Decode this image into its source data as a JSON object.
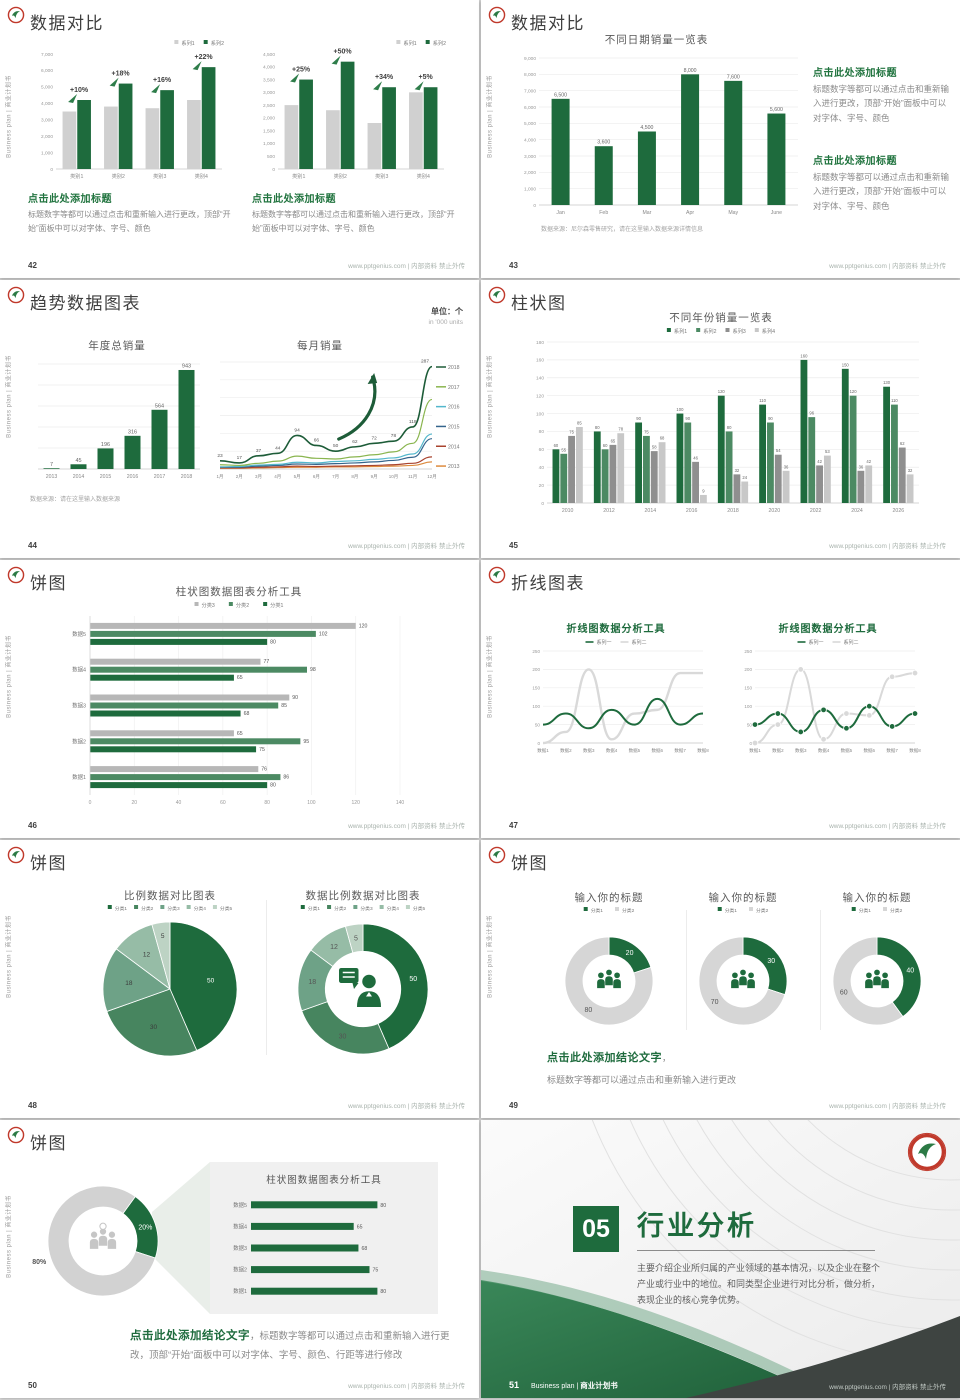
{
  "footer": {
    "url": "www.pptgenius.com | 内部资料 禁止外传"
  },
  "sidebar": {
    "text": "Business plan | 商业计划书"
  },
  "colors": {
    "accent_green": "#1e6b3d",
    "medium_green": "#4c8a63",
    "gray_bar": "#d0d0d0",
    "dark_gray": "#3e4441",
    "logo_red": "#c0392b"
  },
  "slides": {
    "s42": {
      "number": "42",
      "title": "数据对比",
      "blocks": [
        {
          "heading": "点击此处添加标题",
          "body": "标题数字等都可以通过点击和重新输入进行更改，顶部“开始”面板中可以对字体、字号、颜色"
        },
        {
          "heading": "点击此处添加标题",
          "body": "标题数字等都可以通过点击和重新输入进行更改，顶部“开始”面板中可以对字体、字号、颜色"
        }
      ]
    },
    "s43": {
      "number": "43",
      "title": "数据对比",
      "blocks": [
        {
          "heading": "点击此处添加标题",
          "body": "标题数字等都可以通过点击和重新输入进行更改，顶部“开始”面板中可以对字体、字号、颜色"
        },
        {
          "heading": "点击此处添加标题",
          "body": "标题数字等都可以通过点击和重新输入进行更改，顶部“开始”面板中可以对字体、字号、颜色"
        }
      ]
    },
    "s44": {
      "number": "44",
      "title": "趋势数据图表",
      "unit1": "单位：个",
      "unit2": "in '000 units",
      "source": "数据来源：请在这里输入数据来源"
    },
    "s45": {
      "number": "45",
      "title": "柱状图"
    },
    "s46": {
      "number": "46",
      "title": "饼图"
    },
    "s47": {
      "number": "47",
      "title": "折线图表"
    },
    "s48": {
      "number": "48",
      "title": "饼图"
    },
    "s49": {
      "number": "49",
      "title": "饼图",
      "conclusion": {
        "heading": "点击此处添加结论文字",
        "sep": "，",
        "body": "标题数字等都可以通过点击和重新输入进行更改"
      }
    },
    "s50": {
      "number": "50",
      "title": "饼图",
      "conclusion": {
        "heading": "点击此处添加结论文字",
        "body": "，标题数字等都可以通过点击和重新输入进行更改，顶部“开始”面板中可以对字体、字号、颜色、行距等进行修改"
      }
    },
    "s51": {
      "number": "51",
      "section_no": "05",
      "title": "行业分析",
      "brand": "Business plan",
      "sep": "|",
      "brand2": "商业计划书",
      "body": "主要介绍企业所归属的产业领域的基本情况，以及企业在整个产业或行业中的地位。和同类型企业进行对比分析，做分析，表现企业的核心竞争优势。"
    }
  },
  "chart_data": [
    {
      "id": "c42a",
      "type": "grouped_bar",
      "categories": [
        "类别1",
        "类别2",
        "类别3",
        "类别4"
      ],
      "series": [
        {
          "name": "系列1",
          "color": "#d0d0d0",
          "values": [
            3500,
            3800,
            3700,
            4200
          ]
        },
        {
          "name": "系列2",
          "color": "#1e6b3d",
          "values": [
            4200,
            5200,
            4800,
            6200
          ]
        }
      ],
      "ylim": [
        0,
        7000
      ],
      "ystep": 1000,
      "comma": true,
      "showLegend": true,
      "legendPos": "right",
      "annotations": [
        "+10%",
        "+18%",
        "+16%",
        "+22%"
      ]
    },
    {
      "id": "c42b",
      "type": "grouped_bar",
      "categories": [
        "类别1",
        "类别2",
        "类别3",
        "类别4"
      ],
      "series": [
        {
          "name": "系列1",
          "color": "#d0d0d0",
          "values": [
            2500,
            2300,
            1800,
            3000
          ]
        },
        {
          "name": "系列2",
          "color": "#1e6b3d",
          "values": [
            3500,
            4200,
            3200,
            3200
          ]
        }
      ],
      "ylim": [
        0,
        4500
      ],
      "ystep": 500,
      "comma": true,
      "showLegend": true,
      "legendPos": "right",
      "annotations": [
        "+25%",
        "+50%",
        "+34%",
        "+5%"
      ]
    },
    {
      "id": "c43",
      "type": "bar",
      "title": "不同日期销量一览表",
      "categories": [
        "Jan",
        "Feb",
        "Mar",
        "Apr",
        "May",
        "June"
      ],
      "values": [
        6500,
        3600,
        4500,
        8000,
        7600,
        5600
      ],
      "color": "#1e6b3d",
      "ylim": [
        0,
        9000
      ],
      "ystep": 1000,
      "comma": true,
      "labels": true,
      "grid": true,
      "bw": 18,
      "lfs": 5.2,
      "source": "数据来源：尼尔森零售研究，请在这里输入数据来源详情信息"
    },
    {
      "id": "c44a",
      "type": "bar",
      "title": "年度总销量",
      "categories": [
        "2013",
        "2014",
        "2015",
        "2016",
        "2017",
        "2018"
      ],
      "values": [
        7,
        45,
        196,
        316,
        564,
        943
      ],
      "color": "#1e6b3d",
      "ylim": [
        0,
        1000
      ],
      "ystep": 200,
      "labels": true,
      "grid": true,
      "noY": true,
      "pt": 10,
      "lfs": 5.5
    },
    {
      "id": "c44b",
      "type": "line",
      "title": "每月销量",
      "x": [
        "1月",
        "2月",
        "3月",
        "4月",
        "5月",
        "6月",
        "7月",
        "8月",
        "9月",
        "10月",
        "11月",
        "12月"
      ],
      "ylim": [
        0,
        300
      ],
      "ystep": 50,
      "grid": true,
      "noY": true,
      "legendPos": "right",
      "arrow": true,
      "series": [
        {
          "name": "2018",
          "color": "#1d5c38",
          "values": [
            23,
            17,
            37,
            44,
            94,
            66,
            50,
            62,
            72,
            78,
            118,
            287
          ],
          "labels": true,
          "width": 1.6
        },
        {
          "name": "2017",
          "color": "#8ab54f",
          "values": [
            12,
            10,
            16,
            22,
            36,
            30,
            28,
            34,
            40,
            48,
            72,
            195
          ]
        },
        {
          "name": "2016",
          "color": "#53b7cc",
          "values": [
            6,
            7,
            11,
            13,
            19,
            17,
            21,
            23,
            27,
            31,
            42,
            98
          ]
        },
        {
          "name": "2015",
          "color": "#34648c",
          "values": [
            5,
            5,
            8,
            10,
            14,
            13,
            15,
            17,
            20,
            24,
            33,
            85
          ]
        },
        {
          "name": "2014",
          "color": "#a8432e",
          "values": [
            3,
            3,
            5,
            6,
            8,
            7,
            8,
            9,
            10,
            12,
            16,
            34
          ]
        },
        {
          "name": "2013",
          "color": "#dd8b3f",
          "values": [
            2,
            2,
            3,
            4,
            5,
            5,
            6,
            6,
            7,
            8,
            10,
            20
          ]
        }
      ]
    },
    {
      "id": "c45",
      "type": "grouped_bar",
      "title": "不同年份销量一览表",
      "categories": [
        "2010",
        "2012",
        "2014",
        "2016",
        "2018",
        "2020",
        "2022",
        "2024",
        "2026"
      ],
      "series": [
        {
          "name": "系列1",
          "color": "#1e6b3d",
          "values": [
            60,
            80,
            90,
            100,
            120,
            110,
            160,
            150,
            130
          ]
        },
        {
          "name": "系列2",
          "color": "#4c8a63",
          "values": [
            55,
            60,
            75,
            90,
            80,
            90,
            96,
            120,
            110
          ]
        },
        {
          "name": "系列3",
          "color": "#8f8f8f",
          "values": [
            75,
            65,
            58,
            46,
            32,
            54,
            42,
            36,
            62
          ]
        },
        {
          "name": "系列4",
          "color": "#c8c8c8",
          "values": [
            85,
            78,
            68,
            9,
            24,
            36,
            53,
            42,
            32
          ]
        }
      ],
      "ylim": [
        0,
        180
      ],
      "ystep": 20,
      "labels": true,
      "grid": true,
      "showLegend": true,
      "legendPos": "center",
      "lfs": 4.2
    },
    {
      "id": "c46",
      "type": "hbar",
      "title": "柱状图数据图表分析工具",
      "legend": [
        {
          "name": "分类3",
          "color": "#b7b7b7"
        },
        {
          "name": "分类2",
          "color": "#4c8a63"
        },
        {
          "name": "分类1",
          "color": "#1e6b3d"
        }
      ],
      "colors": [
        "#b7b7b7",
        "#4c8a63",
        "#1e6b3d"
      ],
      "rows": [
        {
          "label": "数据5",
          "values": [
            120,
            102,
            80
          ]
        },
        {
          "label": "数据4",
          "values": [
            77,
            98,
            65
          ]
        },
        {
          "label": "数据3",
          "values": [
            90,
            85,
            68
          ]
        },
        {
          "label": "数据2",
          "values": [
            65,
            95,
            75
          ]
        },
        {
          "label": "数据1",
          "values": [
            76,
            86,
            80
          ]
        }
      ],
      "xlim": [
        0,
        140
      ],
      "xstep": 20,
      "valueLabels": true
    },
    {
      "id": "c47a",
      "type": "line",
      "title": "折线图数据分析工具",
      "x": [
        "数据1",
        "数据2",
        "数据3",
        "数据4",
        "数据5",
        "数据6",
        "数据7",
        "数据8"
      ],
      "ylim": [
        0,
        250
      ],
      "ystep": 50,
      "grid": true,
      "legendPos": "top",
      "series": [
        {
          "name": "系列一",
          "color": "#1e6b3d",
          "values": [
            50,
            80,
            40,
            90,
            50,
            120,
            50,
            80
          ],
          "width": 2
        },
        {
          "name": "系列二",
          "color": "#d9d9d9",
          "values": [
            0,
            30,
            200,
            10,
            80,
            90,
            190,
            190
          ],
          "width": 2.4
        }
      ]
    },
    {
      "id": "c47b",
      "type": "line",
      "title": "折线图数据分析工具",
      "x": [
        "数据1",
        "数据2",
        "数据3",
        "数据4",
        "数据5",
        "数据6",
        "数据7",
        "数据8"
      ],
      "ylim": [
        0,
        250
      ],
      "ystep": 50,
      "grid": true,
      "legendPos": "top",
      "series": [
        {
          "name": "系列一",
          "color": "#1e6b3d",
          "values": [
            50,
            80,
            30,
            90,
            40,
            100,
            45,
            80
          ],
          "width": 2,
          "markers": true
        },
        {
          "name": "系列二",
          "color": "#d9d9d9",
          "values": [
            0,
            50,
            200,
            10,
            80,
            75,
            180,
            190
          ],
          "width": 2,
          "markers": true
        }
      ]
    },
    {
      "id": "c48a",
      "type": "pie",
      "title": "比例数据对比图表",
      "legend": [
        "分类1",
        "分类2",
        "分类3",
        "分类4",
        "分类5"
      ],
      "values": [
        50,
        30,
        18,
        12,
        5
      ],
      "colors": [
        "#1e6b3d",
        "#47855f",
        "#6ea287",
        "#96bca6",
        "#bdd3c4"
      ]
    },
    {
      "id": "c48b",
      "type": "donut",
      "title": "数据比例数据对比图表",
      "legend": [
        "分类1",
        "分类2",
        "分类3",
        "分类4",
        "分类5"
      ],
      "values": [
        50,
        30,
        18,
        12,
        5
      ],
      "colors": [
        "#1e6b3d",
        "#47855f",
        "#6ea287",
        "#96bca6",
        "#bdd3c4"
      ],
      "icon": "person-bubble",
      "iconColor": "#1e6b3d",
      "iconScale": 1.5
    },
    {
      "id": "c49a",
      "type": "donut",
      "title": "输入你的标题",
      "legend": [
        "分类1",
        "分类2"
      ],
      "values": [
        20,
        80
      ],
      "colors": [
        "#1e6b3d",
        "#d6d6d6"
      ],
      "R": 44,
      "r": 26,
      "icon": "people",
      "iconColor": "#1e6b3d",
      "iconScale": 0.95
    },
    {
      "id": "c49b",
      "type": "donut",
      "title": "输入你的标题",
      "legend": [
        "分类1",
        "分类2"
      ],
      "values": [
        30,
        70
      ],
      "colors": [
        "#1e6b3d",
        "#d6d6d6"
      ],
      "R": 44,
      "r": 26,
      "icon": "people",
      "iconColor": "#1e6b3d",
      "iconScale": 0.95
    },
    {
      "id": "c49c",
      "type": "donut",
      "title": "输入你的标题",
      "legend": [
        "分类1",
        "分类2"
      ],
      "values": [
        40,
        60
      ],
      "colors": [
        "#1e6b3d",
        "#d6d6d6"
      ],
      "R": 44,
      "r": 26,
      "icon": "people",
      "iconColor": "#1e6b3d",
      "iconScale": 0.95
    },
    {
      "id": "c50a",
      "type": "donut",
      "values": [
        20,
        80
      ],
      "labels": [
        "20%",
        "80%"
      ],
      "start": 36,
      "colors": [
        "#1e6b3d",
        "#d2d2d2"
      ],
      "R": 55,
      "r": 34,
      "labelOut": [
        false,
        true
      ],
      "icon": "people",
      "iconColor": "#c6c6c6",
      "badge": true,
      "iconScale": 1.05
    },
    {
      "id": "c50b",
      "type": "hbar",
      "title": "柱状图数据图表分析工具",
      "colors": [
        "#1e6b3d"
      ],
      "rows": [
        {
          "label": "数据5",
          "values": [
            80
          ]
        },
        {
          "label": "数据4",
          "values": [
            65
          ]
        },
        {
          "label": "数据3",
          "values": [
            68
          ]
        },
        {
          "label": "数据2",
          "values": [
            75
          ]
        },
        {
          "label": "数据1",
          "values": [
            80
          ]
        }
      ],
      "xlim": [
        0,
        100
      ],
      "noAxis": true,
      "valueLabels": true,
      "bh": 7,
      "pt": 6
    }
  ]
}
